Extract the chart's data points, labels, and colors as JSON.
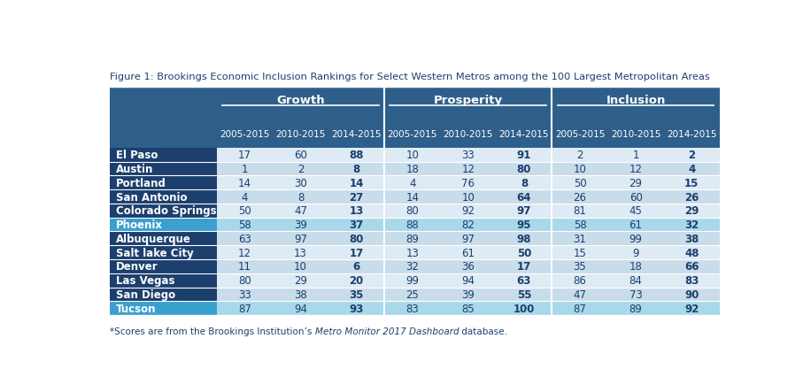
{
  "title": "Figure 1: Brookings Economic Inclusion Rankings for Select Western Metros among the 100 Largest Metropolitan Areas",
  "footnote_prefix": "*Scores are from the Brookings Institution’s ",
  "footnote_italic": "Metro Monitor 2017 Dashboard",
  "footnote_suffix": " database.",
  "col_groups": [
    "Growth",
    "Prosperity",
    "Inclusion"
  ],
  "col_subheaders": [
    "2005-2015",
    "2010-2015",
    "2014-2015"
  ],
  "rows": [
    {
      "city": "El Paso",
      "highlight": false,
      "alt": false,
      "values": [
        17,
        60,
        88,
        10,
        33,
        91,
        2,
        1,
        2
      ]
    },
    {
      "city": "Austin",
      "highlight": false,
      "alt": true,
      "values": [
        1,
        2,
        8,
        18,
        12,
        80,
        10,
        12,
        4
      ]
    },
    {
      "city": "Portland",
      "highlight": false,
      "alt": false,
      "values": [
        14,
        30,
        14,
        4,
        76,
        8,
        50,
        29,
        15
      ]
    },
    {
      "city": "San Antonio",
      "highlight": false,
      "alt": true,
      "values": [
        4,
        8,
        27,
        14,
        10,
        64,
        26,
        60,
        26
      ]
    },
    {
      "city": "Colorado Springs",
      "highlight": false,
      "alt": false,
      "values": [
        50,
        47,
        13,
        80,
        92,
        97,
        81,
        45,
        29
      ]
    },
    {
      "city": "Phoenix",
      "highlight": true,
      "alt": false,
      "values": [
        58,
        39,
        37,
        88,
        82,
        95,
        58,
        61,
        32
      ]
    },
    {
      "city": "Albuquerque",
      "highlight": false,
      "alt": true,
      "values": [
        63,
        97,
        80,
        89,
        97,
        98,
        31,
        99,
        38
      ]
    },
    {
      "city": "Salt lake City",
      "highlight": false,
      "alt": false,
      "values": [
        12,
        13,
        17,
        13,
        61,
        50,
        15,
        9,
        48
      ]
    },
    {
      "city": "Denver",
      "highlight": false,
      "alt": true,
      "values": [
        11,
        10,
        6,
        32,
        36,
        17,
        35,
        18,
        66
      ]
    },
    {
      "city": "Las Vegas",
      "highlight": false,
      "alt": false,
      "values": [
        80,
        29,
        20,
        99,
        94,
        63,
        86,
        84,
        83
      ]
    },
    {
      "city": "San Diego",
      "highlight": false,
      "alt": true,
      "values": [
        33,
        38,
        35,
        25,
        39,
        55,
        47,
        73,
        90
      ]
    },
    {
      "city": "Tucson",
      "highlight": true,
      "alt": false,
      "values": [
        87,
        94,
        93,
        83,
        85,
        100,
        87,
        89,
        92
      ]
    }
  ],
  "colors": {
    "header_top": "#2e5f8a",
    "header_sub": "#2e5f8a",
    "city_dark": "#1c3f6e",
    "city_highlight": "#3aa0d0",
    "data_light": "#deeaf4",
    "data_alt": "#c9dcea",
    "data_highlight": "#a8d8ea",
    "text_header": "#ffffff",
    "text_city": "#ffffff",
    "text_data": "#1c3f6e",
    "text_bold_data": "#1c3f6e",
    "divider_line": "#ffffff",
    "background": "#ffffff",
    "text_footnote": "#1c3f6e"
  }
}
